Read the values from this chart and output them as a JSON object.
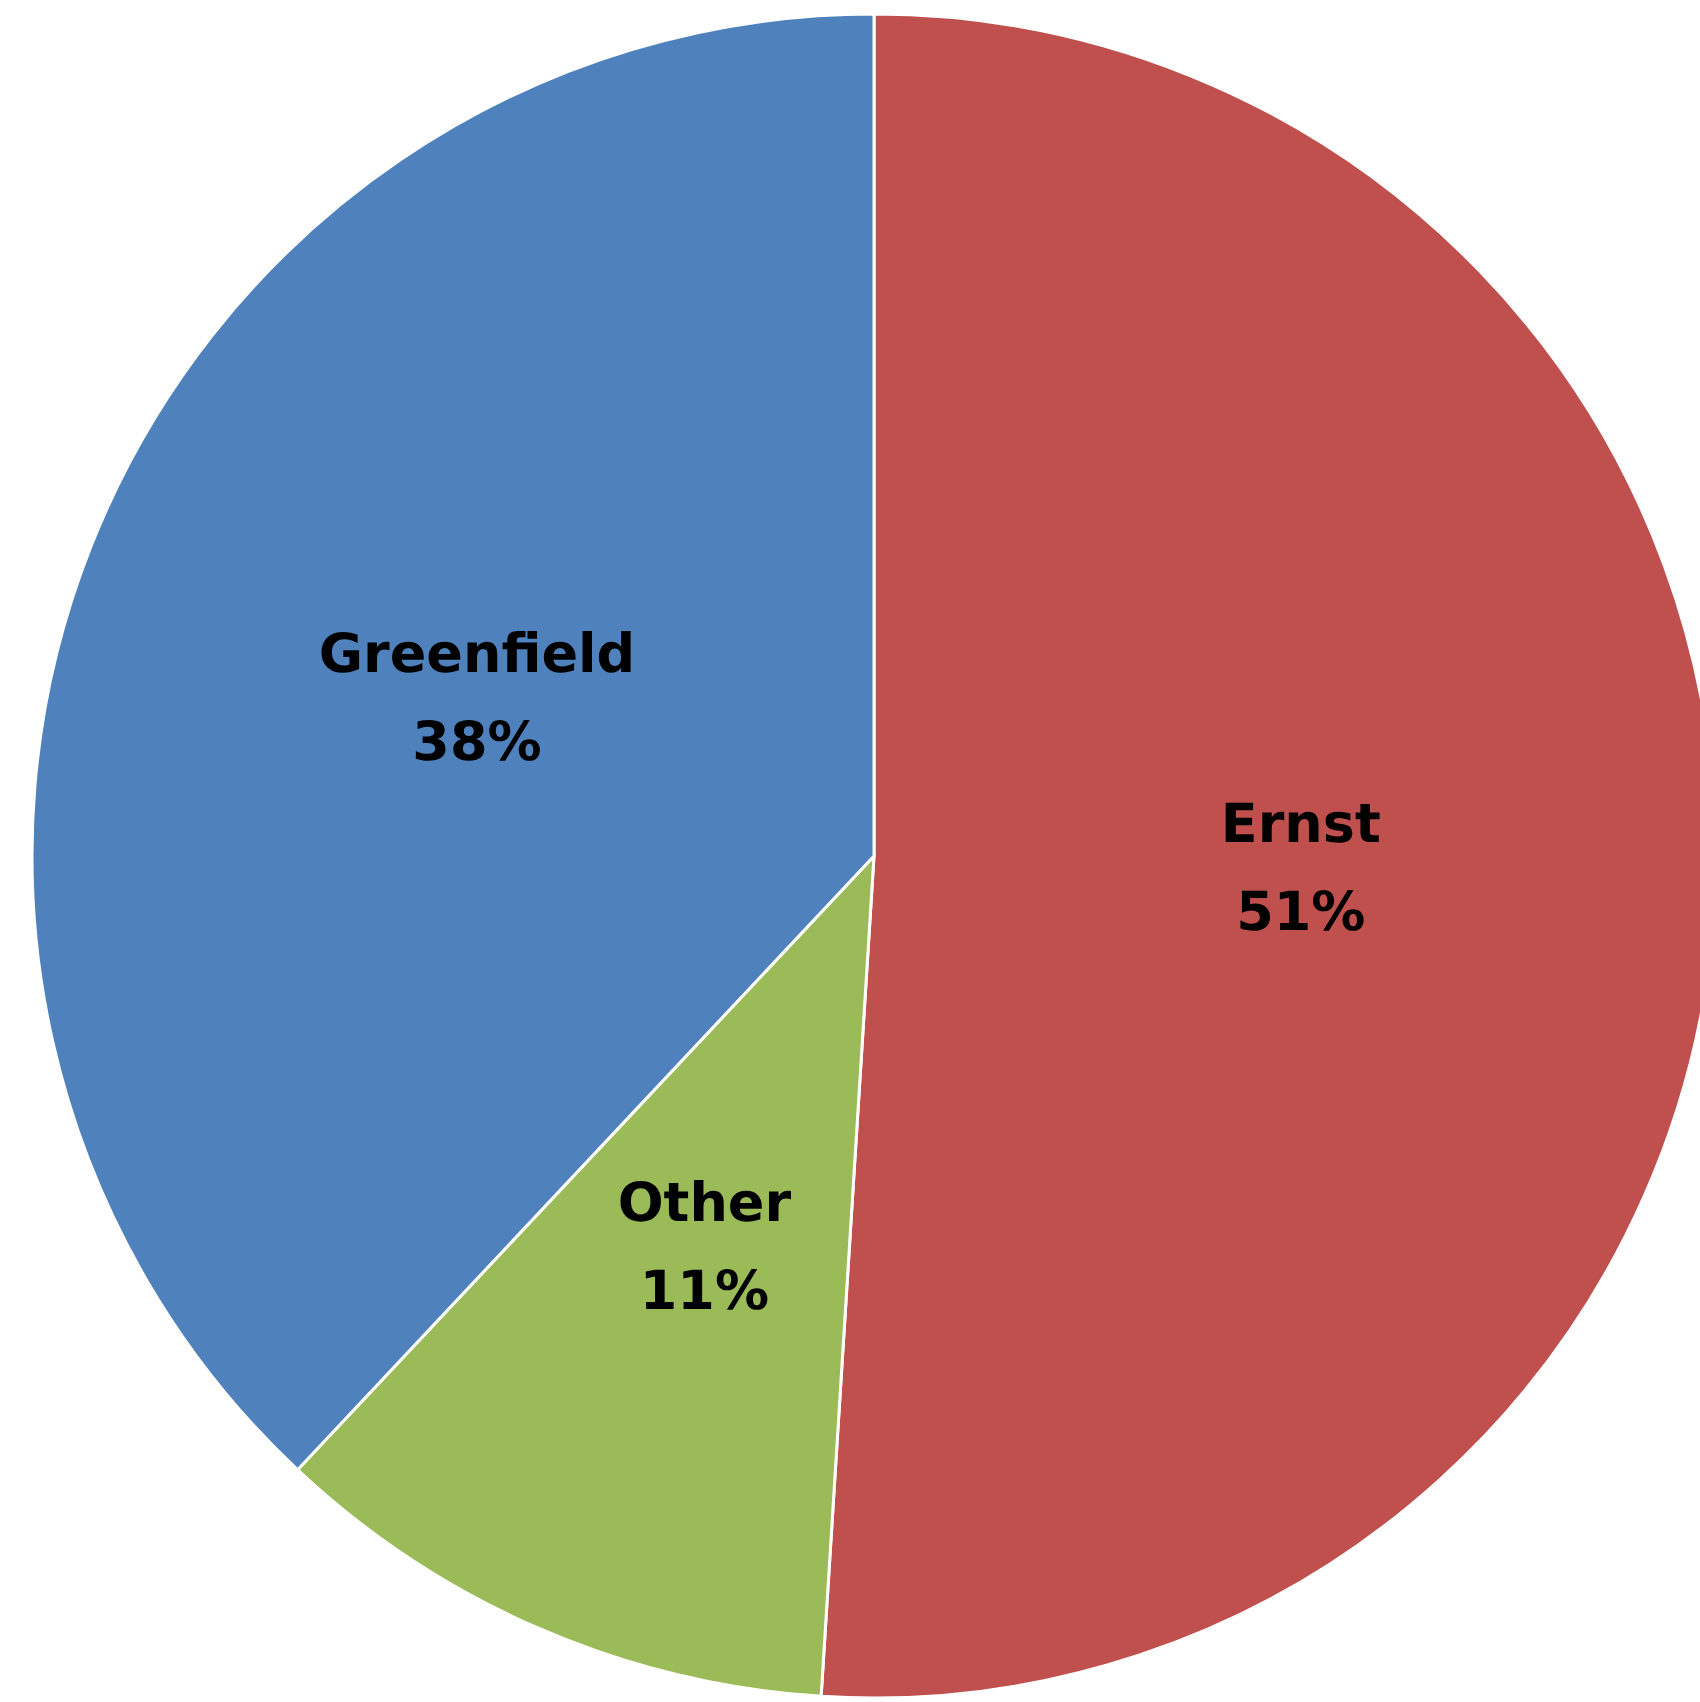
{
  "chart_data": {
    "type": "pie",
    "categories": [
      "Ernst",
      "Other",
      "Greenfield"
    ],
    "values": [
      51,
      11,
      38
    ],
    "value_labels": [
      "51%",
      "11%",
      "38%"
    ],
    "colors": [
      "#c0504d",
      "#9bbb59",
      "#4f81bd"
    ],
    "legend": false
  }
}
